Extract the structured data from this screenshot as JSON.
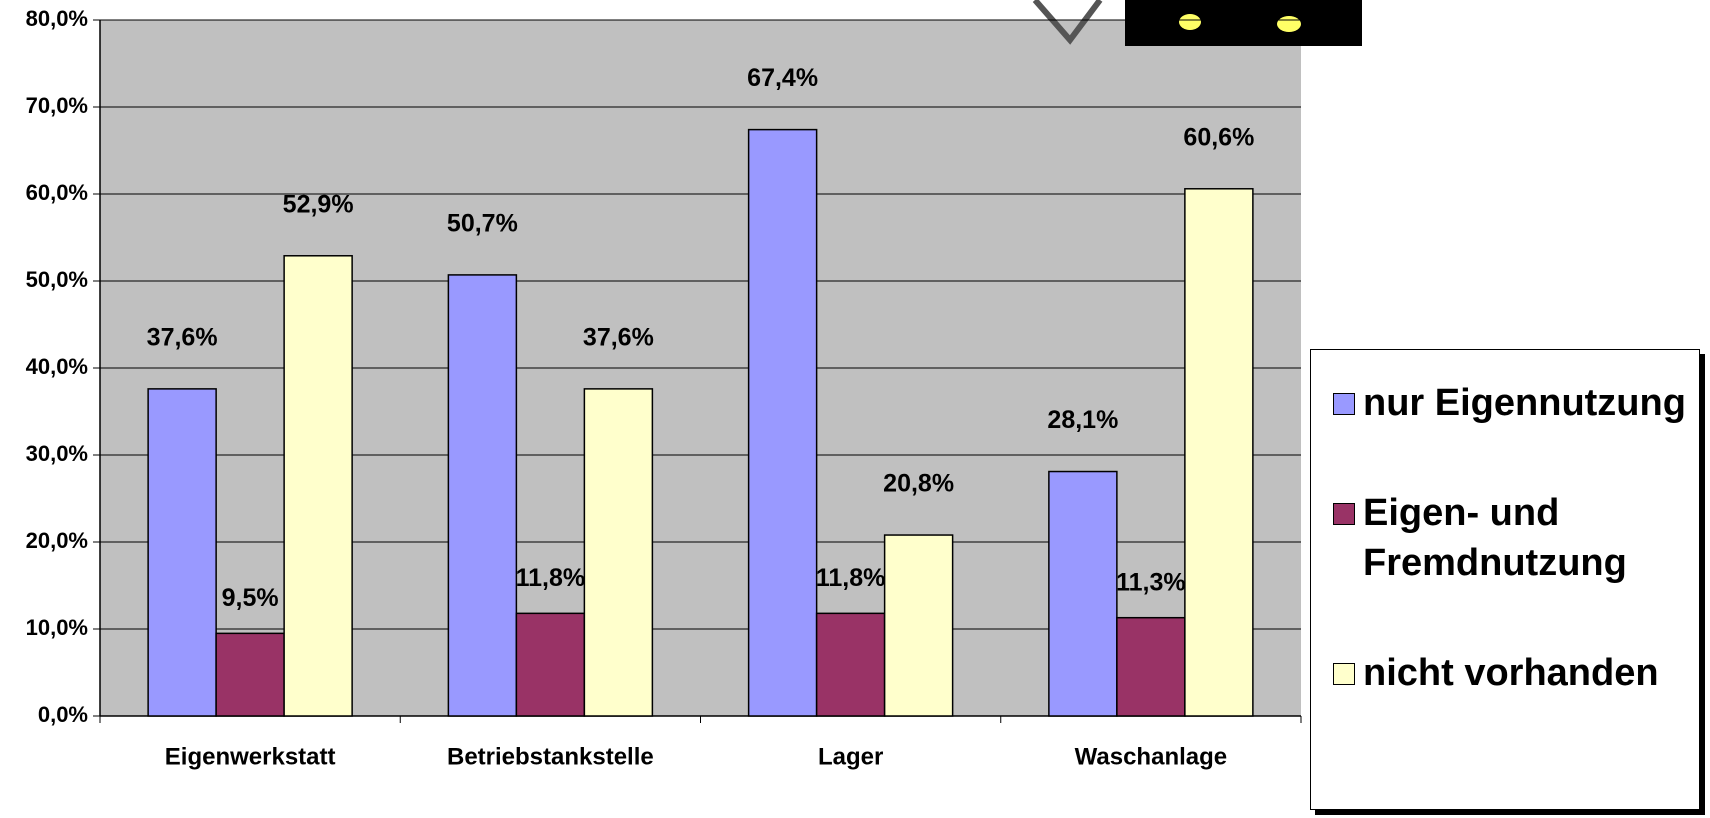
{
  "chart_data": {
    "type": "bar",
    "categories": [
      "Eigenwerkstatt",
      "Betriebstankstelle",
      "Lager",
      "Waschanlage"
    ],
    "series": [
      {
        "name": "nur Eigennutzung",
        "color": "#9999ff",
        "values": [
          37.6,
          50.7,
          67.4,
          28.1
        ],
        "value_labels": [
          "37,6%",
          "50,7%",
          "67,4%",
          "28,1%"
        ]
      },
      {
        "name": "Eigen- und Fremdnutzung",
        "color": "#993366",
        "values": [
          9.5,
          11.8,
          11.8,
          11.3
        ],
        "value_labels": [
          "9,5%",
          "11,8%",
          "11,8%",
          "11,3%"
        ]
      },
      {
        "name": "nicht vorhanden",
        "color": "#ffffcc",
        "values": [
          52.9,
          37.6,
          20.8,
          60.6
        ],
        "value_labels": [
          "52,9%",
          "37,6%",
          "20,8%",
          "60,6%"
        ]
      }
    ],
    "ylim": [
      0,
      80
    ],
    "yticks": [
      {
        "value": 0,
        "label": "0,0%"
      },
      {
        "value": 10,
        "label": "10,0%"
      },
      {
        "value": 20,
        "label": "20,0%"
      },
      {
        "value": 30,
        "label": "30,0%"
      },
      {
        "value": 40,
        "label": "40,0%"
      },
      {
        "value": 50,
        "label": "50,0%"
      },
      {
        "value": 60,
        "label": "60,0%"
      },
      {
        "value": 70,
        "label": "70,0%"
      },
      {
        "value": 80,
        "label": "80,0%"
      }
    ],
    "grid": true
  }
}
